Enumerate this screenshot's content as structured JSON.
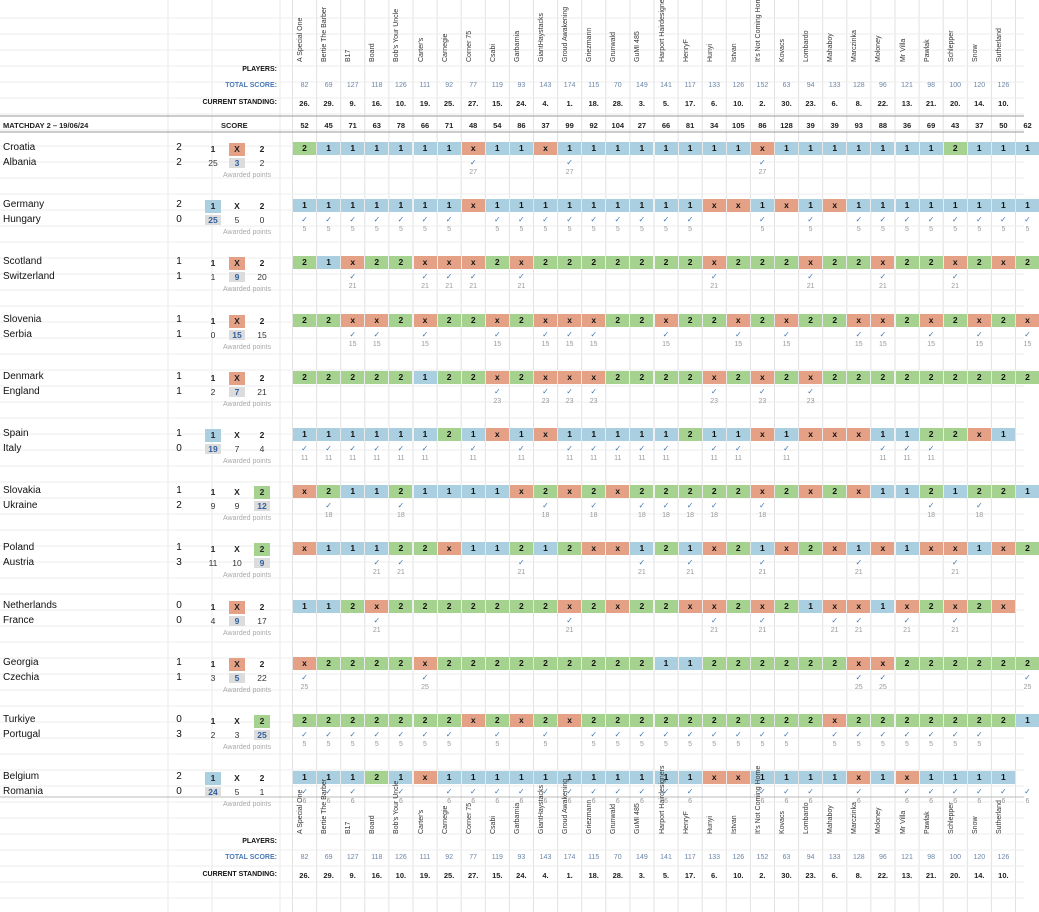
{
  "labels": {
    "players": "PLAYERS:",
    "total_score": "TOTAL SCORE:",
    "current_standing": "CURRENT STANDING:",
    "matchday": "MATCHDAY 2 – 19/06/24",
    "score": "SCORE",
    "awarded_points": "Awarded points",
    "one": "1",
    "x": "X",
    "two": "2"
  },
  "players": [
    {
      "name": "A Special One",
      "total": "82",
      "standing": "26.",
      "md": "52"
    },
    {
      "name": "Bertie The Barber",
      "total": "69",
      "standing": "29.",
      "md": "45"
    },
    {
      "name": "B17",
      "total": "127",
      "standing": "9.",
      "md": "71"
    },
    {
      "name": "Board",
      "total": "118",
      "standing": "16.",
      "md": "63"
    },
    {
      "name": "Bob's Your Uncle",
      "total": "126",
      "standing": "10.",
      "md": "78"
    },
    {
      "name": "Carter's",
      "total": "111",
      "standing": "19.",
      "md": "66"
    },
    {
      "name": "Carnegie",
      "total": "92",
      "standing": "25.",
      "md": "71"
    },
    {
      "name": "Corner 75",
      "total": "77",
      "standing": "27.",
      "md": "48"
    },
    {
      "name": "Csabi",
      "total": "119",
      "standing": "15.",
      "md": "54"
    },
    {
      "name": "Garbarnia",
      "total": "93",
      "standing": "24.",
      "md": "86"
    },
    {
      "name": "GiantHaystacks",
      "total": "143",
      "standing": "4.",
      "md": "37"
    },
    {
      "name": "Groud Awakening",
      "total": "174",
      "standing": "1.",
      "md": "99"
    },
    {
      "name": "Griezmann",
      "total": "115",
      "standing": "18.",
      "md": "92"
    },
    {
      "name": "Grunwald",
      "total": "70",
      "standing": "28.",
      "md": "104"
    },
    {
      "name": "GuMI 485",
      "total": "149",
      "standing": "3.",
      "md": "27"
    },
    {
      "name": "Harport Hairdesigners",
      "total": "141",
      "standing": "5.",
      "md": "66"
    },
    {
      "name": "HenryF",
      "total": "117",
      "standing": "17.",
      "md": "81"
    },
    {
      "name": "Hunyi",
      "total": "133",
      "standing": "6.",
      "md": "34"
    },
    {
      "name": "Istvan",
      "total": "126",
      "standing": "10.",
      "md": "105"
    },
    {
      "name": "It's Not Coming Home",
      "total": "152",
      "standing": "2.",
      "md": "86"
    },
    {
      "name": "Kovacs",
      "total": "63",
      "standing": "30.",
      "md": "128"
    },
    {
      "name": "Lombardo",
      "total": "94",
      "standing": "23.",
      "md": "39"
    },
    {
      "name": "Mahaboy",
      "total": "133",
      "standing": "6.",
      "md": "39"
    },
    {
      "name": "Marczinka",
      "total": "128",
      "standing": "8.",
      "md": "93"
    },
    {
      "name": "Moloney",
      "total": "96",
      "standing": "22.",
      "md": "88"
    },
    {
      "name": "Mr Villa",
      "total": "121",
      "standing": "13.",
      "md": "36"
    },
    {
      "name": "Pawlak",
      "total": "98",
      "standing": "21.",
      "md": "69"
    },
    {
      "name": "Schlepper",
      "total": "100",
      "standing": "20.",
      "md": "43"
    },
    {
      "name": "Snow",
      "total": "120",
      "standing": "14.",
      "md": "37"
    },
    {
      "name": "Sutherland",
      "total": "126",
      "standing": "10.",
      "md": "50"
    },
    {
      "name": "",
      "total": "",
      "standing": "",
      "md": "62"
    }
  ],
  "matches": [
    {
      "home": "Croatia",
      "away": "Albania",
      "hg": "2",
      "ag": "2",
      "c1": "25",
      "cx": "3",
      "c2": "2",
      "result": "X",
      "pts": "27",
      "picks": "2111111X11X11111111X111111121111",
      "correct": [
        7,
        11,
        19
      ]
    },
    {
      "home": "Germany",
      "away": "Hungary",
      "hg": "2",
      "ag": "0",
      "c1": "25",
      "cx": "5",
      "c2": "0",
      "result": "1",
      "pts": "5",
      "picks": "1111111X111111111XX1X1X11111111",
      "correct": [
        0,
        1,
        2,
        3,
        4,
        5,
        6,
        8,
        9,
        10,
        11,
        12,
        13,
        14,
        15,
        16,
        19,
        21,
        23,
        24,
        25,
        26,
        27,
        28,
        29,
        30
      ]
    },
    {
      "home": "Scotland",
      "away": "Switzerland",
      "hg": "1",
      "ag": "1",
      "c1": "1",
      "cx": "9",
      "c2": "20",
      "result": "X",
      "pts": "21",
      "picks": "21X22XXX2X2222222X222X22X22X2X2",
      "correct": [
        2,
        5,
        6,
        7,
        9,
        17,
        21,
        24,
        27
      ]
    },
    {
      "home": "Slovenia",
      "away": "Serbia",
      "hg": "1",
      "ag": "1",
      "c1": "0",
      "cx": "15",
      "c2": "15",
      "result": "X",
      "pts": "15",
      "picks": "22XX2X22X2XXX22X22X2X22XX2X2X2X",
      "correct": [
        2,
        3,
        5,
        8,
        10,
        11,
        12,
        15,
        18,
        20,
        23,
        24,
        26,
        28,
        30
      ]
    },
    {
      "home": "Denmark",
      "away": "England",
      "hg": "1",
      "ag": "1",
      "c1": "2",
      "cx": "7",
      "c2": "21",
      "result": "X",
      "pts": "23",
      "picks": "22222122X2XXX2222X2X2X22222222221",
      "correct": [
        8,
        10,
        11,
        12,
        17,
        19,
        21
      ]
    },
    {
      "home": "Spain",
      "away": "Italy",
      "hg": "1",
      "ag": "0",
      "c1": "19",
      "cx": "7",
      "c2": "4",
      "result": "1",
      "pts": "11",
      "picks": "11111121X1X11111211X1XXX1122X1",
      "correct": [
        0,
        1,
        2,
        3,
        4,
        5,
        7,
        9,
        11,
        12,
        13,
        14,
        15,
        17,
        18,
        20,
        24,
        25,
        26
      ]
    },
    {
      "home": "Slovakia",
      "away": "Ukraine",
      "hg": "1",
      "ag": "2",
      "c1": "9",
      "cx": "9",
      "c2": "12",
      "result": "2",
      "pts": "18",
      "picks": "X21121111X2X2X22222X2X2X1121221",
      "correct": [
        1,
        4,
        10,
        12,
        14,
        15,
        16,
        17,
        19,
        26,
        28
      ]
    },
    {
      "home": "Poland",
      "away": "Austria",
      "hg": "1",
      "ag": "3",
      "c1": "11",
      "cx": "10",
      "c2": "9",
      "result": "2",
      "pts": "21",
      "picks": "X11122X11212XX121X21X2X1X1XX1X21",
      "correct": [
        3,
        4,
        9,
        14,
        16,
        19,
        23,
        27
      ]
    },
    {
      "home": "Netherlands",
      "away": "France",
      "hg": "0",
      "ag": "0",
      "c1": "4",
      "cx": "9",
      "c2": "17",
      "result": "X",
      "pts": "21",
      "picks": "112X2222222X2X22XX2X21XX1X2X2X",
      "correct": [
        3,
        11,
        17,
        19,
        22,
        23,
        25,
        27
      ]
    },
    {
      "home": "Georgia",
      "away": "Czechia",
      "hg": "1",
      "ag": "1",
      "c1": "3",
      "cx": "5",
      "c2": "22",
      "result": "X",
      "pts": "25",
      "picks": "X2222X22222222211222222XX2222222X",
      "correct": [
        0,
        5,
        23,
        24,
        30
      ]
    },
    {
      "home": "Turkiye",
      "away": "Portugal",
      "hg": "0",
      "ag": "3",
      "c1": "2",
      "cx": "3",
      "c2": "25",
      "result": "2",
      "pts": "5",
      "picks": "2222222X2X2X2222222222X222222211",
      "correct": [
        0,
        1,
        2,
        3,
        4,
        5,
        6,
        8,
        10,
        12,
        13,
        14,
        15,
        16,
        17,
        18,
        19,
        20,
        22,
        23,
        24,
        25,
        26,
        27,
        28
      ]
    },
    {
      "home": "Belgium",
      "away": "Romania",
      "hg": "2",
      "ag": "0",
      "c1": "24",
      "cx": "5",
      "c2": "1",
      "result": "1",
      "pts": "6",
      "picks": "11121X11111111111XX1111X1X1111",
      "correct": [
        0,
        1,
        2,
        4,
        6,
        7,
        8,
        9,
        10,
        11,
        12,
        13,
        14,
        15,
        16,
        19,
        20,
        21,
        23,
        25,
        26,
        27,
        28,
        29,
        30
      ]
    }
  ]
}
